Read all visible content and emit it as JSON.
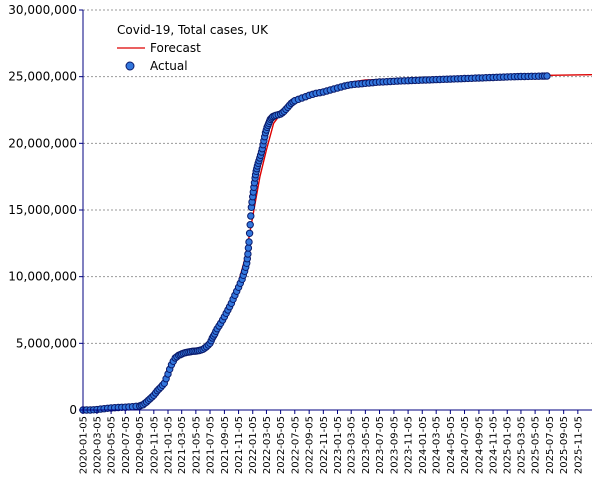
{
  "chart_data": {
    "type": "line",
    "title": "Covid-19, Total cases, UK",
    "xlabel": "",
    "ylabel": "",
    "x_type": "date",
    "xlim": [
      "2020-01-05",
      "2026-01-05"
    ],
    "ylim": [
      0,
      30000000
    ],
    "y_ticks": [
      0,
      5000000,
      10000000,
      15000000,
      20000000,
      25000000,
      30000000
    ],
    "y_tick_labels": [
      "0",
      "5,000,000",
      "10,000,000",
      "15,000,000",
      "20,000,000",
      "25,000,000",
      "30,000,000"
    ],
    "x_tick_labels": [
      "2020-01-05",
      "2020-03-05",
      "2020-05-05",
      "2020-07-05",
      "2020-09-05",
      "2020-11-05",
      "2021-01-05",
      "2021-03-05",
      "2021-05-05",
      "2021-07-05",
      "2021-09-05",
      "2021-11-05",
      "2022-01-05",
      "2022-03-05",
      "2022-05-05",
      "2022-07-05",
      "2022-09-05",
      "2022-11-05",
      "2023-01-05",
      "2023-03-05",
      "2023-05-05",
      "2023-07-05",
      "2023-09-05",
      "2023-11-05",
      "2024-01-05",
      "2024-03-05",
      "2024-05-05",
      "2024-07-05",
      "2024-09-05",
      "2024-11-05",
      "2025-01-05",
      "2025-03-05",
      "2025-05-05",
      "2025-07-05",
      "2025-09-05",
      "2025-11-05"
    ],
    "grid": "horizontal dashed",
    "legend_position": "top-left",
    "colors": {
      "forecast": "#dd0000",
      "actual_fill": "#3377dd",
      "actual_edge": "#0a1a6a",
      "axis": "#000080",
      "grid": "#999999"
    },
    "series": [
      {
        "name": "Forecast",
        "style": "line",
        "points": [
          [
            "2020-01-05",
            0
          ],
          [
            "2020-03-05",
            100000
          ],
          [
            "2020-05-05",
            300000
          ],
          [
            "2020-07-05",
            400000
          ],
          [
            "2020-09-05",
            450000
          ],
          [
            "2020-11-05",
            1000000
          ],
          [
            "2020-12-15",
            2200000
          ],
          [
            "2021-01-05",
            3200000
          ],
          [
            "2021-02-05",
            4000000
          ],
          [
            "2021-03-05",
            4250000
          ],
          [
            "2021-05-05",
            4450000
          ],
          [
            "2021-07-05",
            4900000
          ],
          [
            "2021-08-05",
            6200000
          ],
          [
            "2021-09-05",
            7300000
          ],
          [
            "2021-10-05",
            8400000
          ],
          [
            "2021-11-05",
            9600000
          ],
          [
            "2021-12-05",
            11500000
          ],
          [
            "2022-01-05",
            14500000
          ],
          [
            "2022-02-05",
            17500000
          ],
          [
            "2022-03-05",
            19500000
          ],
          [
            "2022-04-05",
            21500000
          ],
          [
            "2022-05-05",
            22200000
          ],
          [
            "2022-07-05",
            23300000
          ],
          [
            "2022-09-05",
            23700000
          ],
          [
            "2022-11-05",
            24000000
          ],
          [
            "2023-01-05",
            24300000
          ],
          [
            "2023-03-05",
            24600000
          ],
          [
            "2023-05-05",
            24750000
          ],
          [
            "2023-07-05",
            24780000
          ],
          [
            "2023-09-05",
            24800000
          ],
          [
            "2024-01-05",
            24850000
          ],
          [
            "2024-07-05",
            24900000
          ],
          [
            "2025-01-05",
            25000000
          ],
          [
            "2025-07-05",
            25100000
          ],
          [
            "2026-01-05",
            25150000
          ]
        ]
      },
      {
        "name": "Actual",
        "style": "scatter",
        "points": [
          [
            "2020-01-05",
            0
          ],
          [
            "2020-02-05",
            0
          ],
          [
            "2020-03-05",
            30000
          ],
          [
            "2020-04-05",
            100000
          ],
          [
            "2020-05-05",
            150000
          ],
          [
            "2020-06-05",
            190000
          ],
          [
            "2020-07-05",
            210000
          ],
          [
            "2020-08-05",
            250000
          ],
          [
            "2020-09-05",
            300000
          ],
          [
            "2020-09-20",
            400000
          ],
          [
            "2020-10-05",
            600000
          ],
          [
            "2020-10-20",
            850000
          ],
          [
            "2020-11-05",
            1100000
          ],
          [
            "2020-11-20",
            1450000
          ],
          [
            "2020-12-05",
            1700000
          ],
          [
            "2020-12-20",
            2000000
          ],
          [
            "2021-01-05",
            2700000
          ],
          [
            "2021-01-20",
            3400000
          ],
          [
            "2021-02-05",
            3900000
          ],
          [
            "2021-02-20",
            4100000
          ],
          [
            "2021-03-05",
            4200000
          ],
          [
            "2021-03-20",
            4300000
          ],
          [
            "2021-04-05",
            4350000
          ],
          [
            "2021-04-20",
            4400000
          ],
          [
            "2021-05-05",
            4420000
          ],
          [
            "2021-05-20",
            4460000
          ],
          [
            "2021-06-05",
            4550000
          ],
          [
            "2021-06-20",
            4750000
          ],
          [
            "2021-07-05",
            5000000
          ],
          [
            "2021-07-15",
            5400000
          ],
          [
            "2021-07-25",
            5700000
          ],
          [
            "2021-08-05",
            6100000
          ],
          [
            "2021-08-20",
            6500000
          ],
          [
            "2021-09-05",
            7000000
          ],
          [
            "2021-09-20",
            7500000
          ],
          [
            "2021-10-05",
            8000000
          ],
          [
            "2021-10-20",
            8600000
          ],
          [
            "2021-11-05",
            9200000
          ],
          [
            "2021-11-20",
            9800000
          ],
          [
            "2021-12-01",
            10400000
          ],
          [
            "2021-12-10",
            11000000
          ],
          [
            "2021-12-15",
            11700000
          ],
          [
            "2021-12-20",
            12600000
          ],
          [
            "2021-12-25",
            13900000
          ],
          [
            "2021-12-30",
            15200000
          ],
          [
            "2022-01-05",
            16000000
          ],
          [
            "2022-01-10",
            16700000
          ],
          [
            "2022-01-15",
            17400000
          ],
          [
            "2022-01-20",
            17900000
          ],
          [
            "2022-01-25",
            18300000
          ],
          [
            "2022-02-01",
            18700000
          ],
          [
            "2022-02-08",
            19100000
          ],
          [
            "2022-02-15",
            19600000
          ],
          [
            "2022-02-22",
            20200000
          ],
          [
            "2022-03-01",
            20800000
          ],
          [
            "2022-03-08",
            21200000
          ],
          [
            "2022-03-15",
            21500000
          ],
          [
            "2022-03-22",
            21800000
          ],
          [
            "2022-04-01",
            22000000
          ],
          [
            "2022-04-15",
            22100000
          ],
          [
            "2022-05-05",
            22200000
          ],
          [
            "2022-05-20",
            22400000
          ],
          [
            "2022-06-05",
            22700000
          ],
          [
            "2022-06-20",
            23000000
          ],
          [
            "2022-07-05",
            23200000
          ],
          [
            "2022-08-05",
            23400000
          ],
          [
            "2022-09-05",
            23600000
          ],
          [
            "2022-10-05",
            23750000
          ],
          [
            "2022-11-05",
            23850000
          ],
          [
            "2022-12-05",
            24000000
          ],
          [
            "2023-01-05",
            24150000
          ],
          [
            "2023-02-05",
            24300000
          ],
          [
            "2023-03-05",
            24400000
          ],
          [
            "2023-04-05",
            24450000
          ],
          [
            "2023-05-05",
            24500000
          ],
          [
            "2023-06-05",
            24550000
          ],
          [
            "2023-07-05",
            24600000
          ],
          [
            "2023-08-05",
            24620000
          ],
          [
            "2023-09-05",
            24650000
          ],
          [
            "2023-10-05",
            24680000
          ],
          [
            "2023-11-05",
            24700000
          ],
          [
            "2023-12-05",
            24720000
          ],
          [
            "2024-01-05",
            24740000
          ],
          [
            "2024-02-05",
            24760000
          ],
          [
            "2024-03-05",
            24780000
          ],
          [
            "2024-04-05",
            24800000
          ],
          [
            "2024-05-05",
            24820000
          ],
          [
            "2024-06-05",
            24840000
          ],
          [
            "2024-07-05",
            24860000
          ],
          [
            "2024-08-05",
            24880000
          ],
          [
            "2024-09-05",
            24900000
          ],
          [
            "2024-10-05",
            24920000
          ],
          [
            "2024-11-05",
            24940000
          ],
          [
            "2024-12-05",
            24960000
          ],
          [
            "2025-01-05",
            24980000
          ],
          [
            "2025-02-05",
            25000000
          ],
          [
            "2025-03-05",
            25010000
          ],
          [
            "2025-04-05",
            25020000
          ],
          [
            "2025-05-05",
            25030000
          ],
          [
            "2025-06-05",
            25040000
          ],
          [
            "2025-06-25",
            25050000
          ]
        ]
      }
    ]
  }
}
